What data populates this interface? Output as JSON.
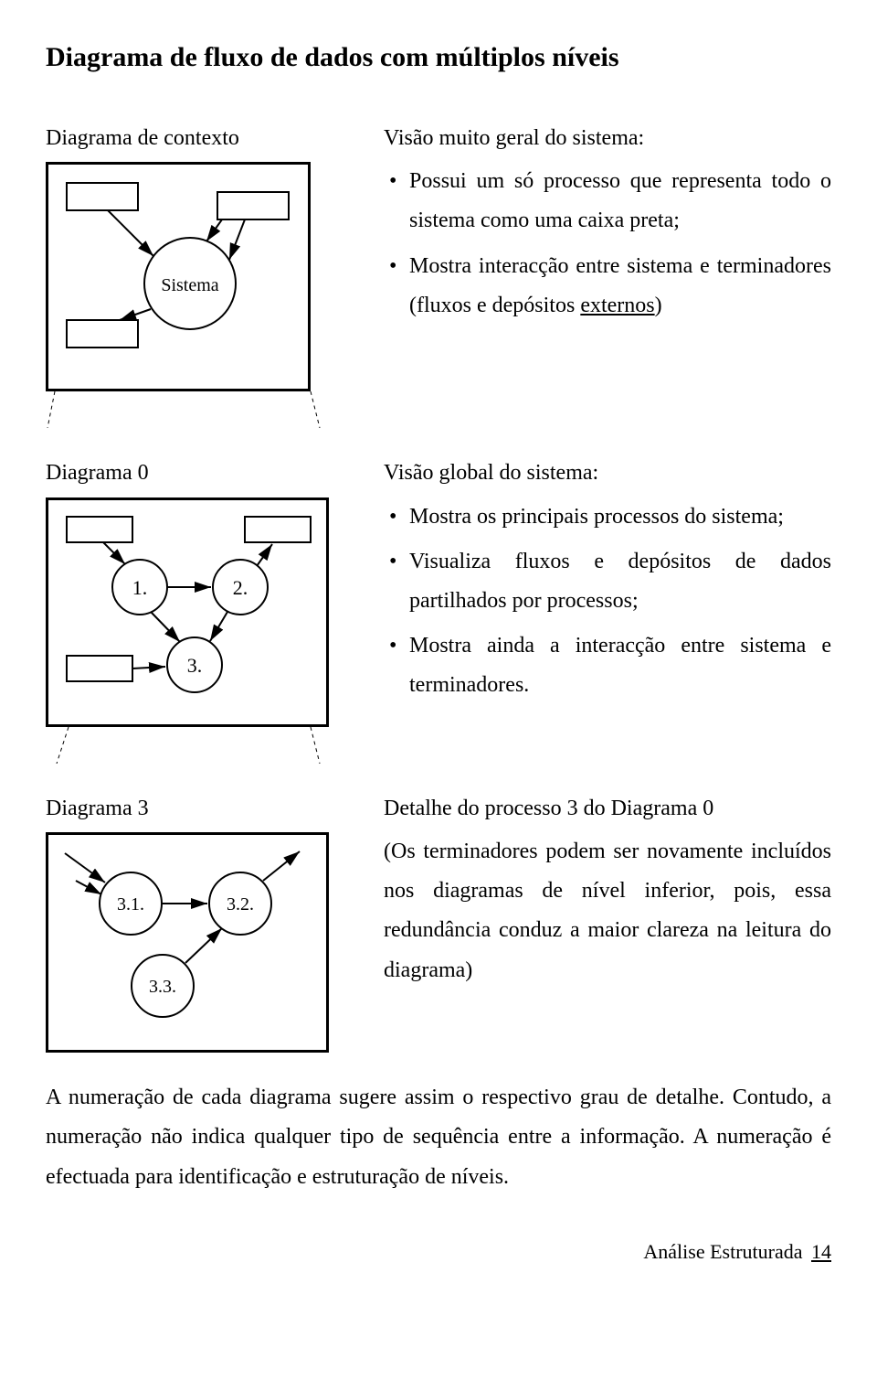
{
  "title": "Diagrama de fluxo de dados com múltiplos níveis",
  "context": {
    "label": "Diagrama de contexto",
    "node_label": "Sistema",
    "lead": "Visão muito geral do sistema:",
    "bullets": [
      "Possui um só processo que representa todo o sistema como uma caixa preta;",
      "Mostra interacção entre sistema e terminadores (fluxos e depósitos <span class=\"underline\">externos</span>)"
    ]
  },
  "level0": {
    "label": "Diagrama 0",
    "nodes": [
      "1.",
      "2.",
      "3."
    ],
    "lead": "Visão global do sistema:",
    "bullets": [
      "Mostra os principais processos do sistema;",
      "Visualiza fluxos e depósitos de dados partilhados por processos;",
      "Mostra ainda a interacção entre sistema e terminadores."
    ]
  },
  "level3": {
    "label": "Diagrama 3",
    "nodes": [
      "3.1.",
      "3.2.",
      "3.3."
    ],
    "lead": "Detalhe do processo 3 do Diagrama 0",
    "para": "(Os terminadores podem ser novamente incluídos nos diagramas de nível inferior, pois, essa redundância conduz a maior clareza na leitura do diagrama)"
  },
  "bottom": "A numeração de cada diagrama sugere assim o respectivo grau de detalhe. Contudo, a numeração não indica qualquer tipo de sequência entre a informação. A numeração é efectuada para identificação e estruturação de níveis.",
  "footer": {
    "text": "Análise Estruturada",
    "page": "14"
  },
  "style": {
    "stroke": "#000000",
    "stroke_width": 2,
    "node_fill": "#ffffff",
    "font_node": 20
  }
}
